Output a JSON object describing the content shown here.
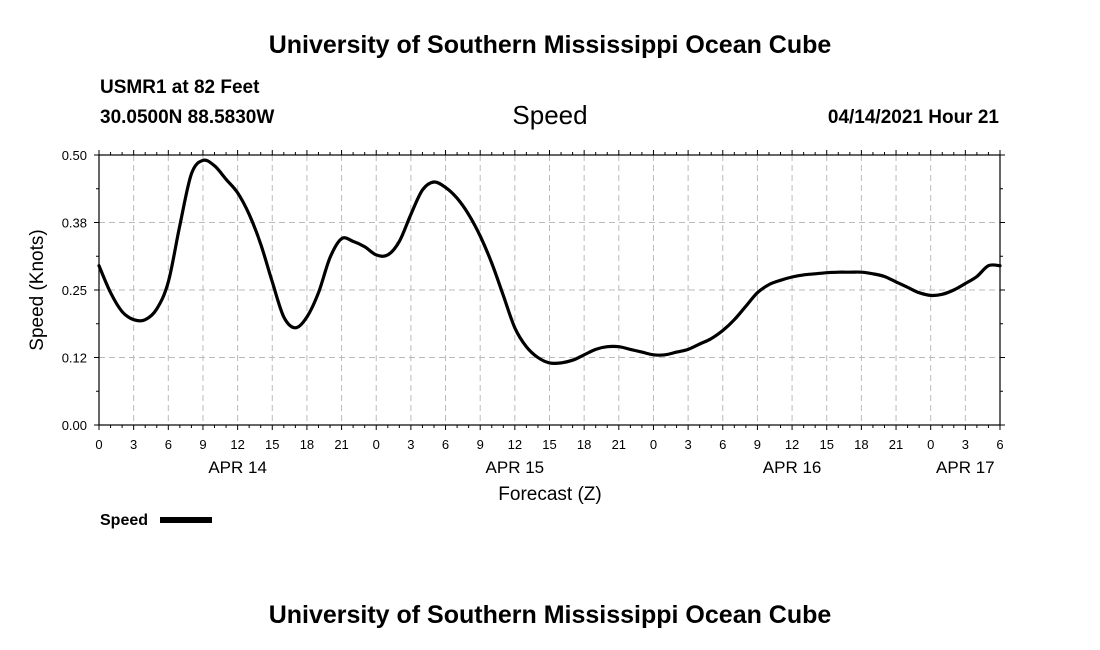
{
  "header": {
    "top_title": "University of Southern Mississippi Ocean Cube",
    "station_depth": "USMR1 at 82 Feet",
    "coordinates": "30.0500N  88.5830W",
    "variable": "Speed",
    "timestamp": "04/14/2021 Hour 21"
  },
  "footer": {
    "bottom_title": "University of Southern Mississippi Ocean Cube"
  },
  "chart_data": {
    "type": "line",
    "title": "Speed",
    "xlabel": "Forecast (Z)",
    "ylabel": "Speed (Knots)",
    "ylim": [
      0,
      0.5
    ],
    "xlim": [
      0,
      78
    ],
    "yticks": [
      0.0,
      0.125,
      0.25,
      0.375,
      0.5
    ],
    "ytick_labels": [
      "0.00",
      "0.12",
      "0.25",
      "0.38",
      "0.50"
    ],
    "xtick_labels": [
      "0",
      "3",
      "6",
      "9",
      "12",
      "15",
      "18",
      "21",
      "0",
      "3",
      "6",
      "9",
      "12",
      "15",
      "18",
      "21",
      "0",
      "3",
      "6",
      "9",
      "12",
      "15",
      "18",
      "21",
      "0",
      "3",
      "6"
    ],
    "date_labels": [
      {
        "label": "APR 14",
        "hour": 12
      },
      {
        "label": "APR 15",
        "hour": 36
      },
      {
        "label": "APR 16",
        "hour": 60
      },
      {
        "label": "APR 17",
        "hour": 75
      }
    ],
    "grid": true,
    "legend": {
      "position": "bottom-left",
      "label": "Speed"
    },
    "series": [
      {
        "name": "Speed",
        "color": "#000000",
        "x": [
          0,
          1,
          2,
          3,
          4,
          5,
          6,
          7,
          8,
          9,
          10,
          11,
          12,
          13,
          14,
          15,
          16,
          17,
          18,
          19,
          20,
          21,
          22,
          23,
          24,
          25,
          26,
          27,
          28,
          29,
          30,
          31,
          32,
          33,
          34,
          35,
          36,
          37,
          38,
          39,
          40,
          41,
          42,
          43,
          44,
          45,
          46,
          47,
          48,
          49,
          50,
          51,
          52,
          53,
          54,
          55,
          56,
          57,
          58,
          59,
          60,
          61,
          62,
          63,
          64,
          65,
          66,
          67,
          68,
          69,
          70,
          71,
          72,
          73,
          74,
          75,
          76,
          77,
          78
        ],
        "values": [
          0.295,
          0.245,
          0.21,
          0.195,
          0.195,
          0.215,
          0.265,
          0.37,
          0.465,
          0.49,
          0.48,
          0.455,
          0.43,
          0.39,
          0.335,
          0.265,
          0.2,
          0.18,
          0.2,
          0.245,
          0.31,
          0.345,
          0.34,
          0.33,
          0.315,
          0.315,
          0.34,
          0.39,
          0.435,
          0.45,
          0.44,
          0.42,
          0.39,
          0.35,
          0.3,
          0.24,
          0.18,
          0.145,
          0.125,
          0.115,
          0.115,
          0.12,
          0.13,
          0.14,
          0.145,
          0.145,
          0.14,
          0.135,
          0.13,
          0.13,
          0.135,
          0.14,
          0.15,
          0.16,
          0.175,
          0.195,
          0.22,
          0.245,
          0.26,
          0.268,
          0.274,
          0.278,
          0.28,
          0.282,
          0.283,
          0.283,
          0.283,
          0.28,
          0.275,
          0.265,
          0.255,
          0.245,
          0.24,
          0.242,
          0.25,
          0.262,
          0.275,
          0.295,
          0.295
        ]
      }
    ]
  }
}
